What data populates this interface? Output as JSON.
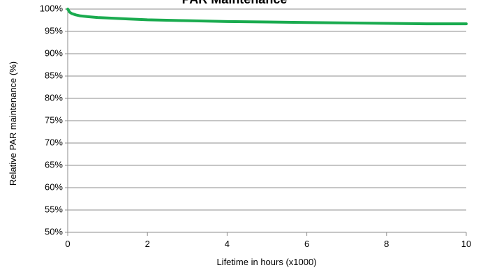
{
  "chart_data": {
    "type": "line",
    "title": "PAR Maintenance",
    "xlabel": "Lifetime in hours (x1000)",
    "ylabel": "Relative PAR maintenance (%)",
    "xlim": [
      0,
      10
    ],
    "ylim": [
      50,
      100
    ],
    "x_ticks": [
      "0",
      "2",
      "4",
      "6",
      "8",
      "10"
    ],
    "y_ticks": [
      "50%",
      "55%",
      "60%",
      "65%",
      "70%",
      "75%",
      "80%",
      "85%",
      "90%",
      "95%",
      "100%"
    ],
    "grid": true,
    "legend": "none",
    "series": [
      {
        "color": "#1aab4f",
        "x": [
          0,
          0.05,
          0.1,
          0.2,
          0.3,
          0.5,
          0.75,
          1,
          1.5,
          2,
          3,
          4,
          5,
          6,
          7,
          8,
          9,
          10
        ],
        "y": [
          100,
          99.3,
          99.0,
          98.7,
          98.5,
          98.3,
          98.1,
          98.0,
          97.8,
          97.6,
          97.4,
          97.2,
          97.1,
          97.0,
          96.9,
          96.8,
          96.7,
          96.7
        ]
      }
    ]
  }
}
